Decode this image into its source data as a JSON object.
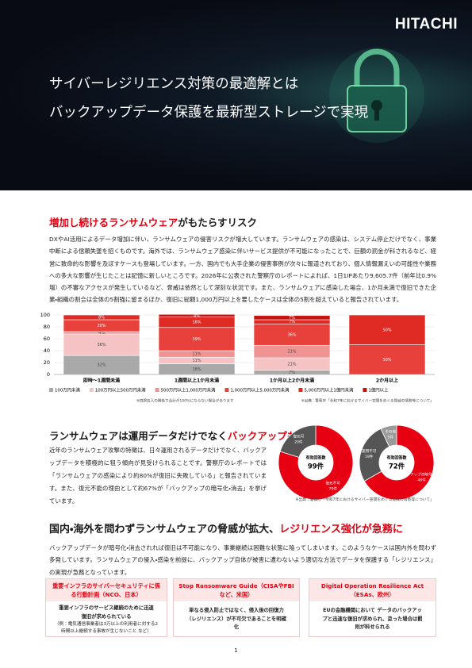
{
  "header": {
    "logo": "HITACHI",
    "title_lines": [
      "サイバーレジリエンス対策の最適解とは",
      "バックアップデータ保護を最新型ストレージで実現"
    ]
  },
  "sections": [
    {
      "heading": [
        {
          "text": "増加し続けるランサムウェア",
          "accent": true
        },
        {
          "text": "がもたらすリスク",
          "accent": false
        }
      ],
      "body": "DXやAI活用によるデータ増加に伴い、ランサムウェアの侵害リスクが増大しています。ランサムウェアの感染は、システム停止だけでなく、事業中断による信頼失墜を招くものです。海外では、ランサムウェア感染に伴いサービス提供が不可能になったことで、巨額の罰金が科されるなど、経営に致命的な影響を及ぼすケースも登場しています。一方、国内でも大手企業の侵害事例が次々に報道されており、個人情報漏えいの可能性や業務への多大な影響が生じたことは記憶に新しいところです。2026年に公表された警察庁のレポートによれば、1日1IPあたり9,605.7件（前年比0.9%増）の不審なアクセスが発生しているなど、脅威は依然として深刻な状況です。また、ランサムウェアに感染した場合、1か月未満で復旧できた企業・組織の割合は全体の5割強に留まるほか、復旧に総額1,000万円以上を要したケースは全体の5割を超えていると報告されています。"
    },
    {
      "heading": [
        {
          "text": "ランサムウェアは運用データだけでなく",
          "accent": false
        },
        {
          "text": "バックアップも標的に",
          "accent": true
        }
      ],
      "body": "近年のランサムウェア攻撃の特徴は、日々運用されるデータだけでなく、バックアップデータを積極的に狙う傾向が見受けられることです。警察庁のレポートでは「ランサムウェアの感染により約80%が復旧に失敗している」と報告されています。また、復元不能の理由として約67%が「バックアップの暗号化・消去」を挙げています。"
    },
    {
      "heading": [
        {
          "text": "国内・海外を問わずランサムウェアの脅威が拡大、",
          "accent": false
        },
        {
          "text": "レジリエンス強化が急務に",
          "accent": true
        }
      ],
      "body": "バックアップデータが暗号化・消去されれば復旧は不可能になり、事業継続は困難な状態に陥ってしまいます。このようなケースは国内外を問わず多発しています。ランサムウェアの侵入・感染を前提に、バックアップ自体が被害に遭わないよう適切な方法でデータを保護する「レジリエンス」の実現が急務となっています。"
    }
  ],
  "chart_data": [
    {
      "type": "bar",
      "stacked": true,
      "grid": true,
      "categories": [
        "即時〜1週間未満",
        "1週間以上1か月未満",
        "1か月以上2か月未満",
        "2か月以上"
      ],
      "ylim": [
        0,
        100
      ],
      "yticks": [
        0,
        20,
        40,
        60,
        80,
        100
      ],
      "series": [
        {
          "name": "100万円未満",
          "color": "#a9a9a9",
          "values": [
            32,
            18,
            7,
            0
          ],
          "value_labels": [
            "32%",
            "18%",
            "7%",
            null
          ]
        },
        {
          "name": "100万円以上500万円未満",
          "color": "#f5c3c3",
          "values": [
            36,
            11,
            21,
            0
          ],
          "value_labels": [
            "36%",
            "11%",
            "21%",
            null
          ]
        },
        {
          "name": "500万円以上1,000万円未満",
          "color": "#f09393",
          "values": [
            4,
            11,
            21,
            0
          ],
          "value_labels": [
            "4%",
            "11%",
            "21%",
            null
          ]
        },
        {
          "name": "1,000万円以上5,000万円未満",
          "color": "#e8413c",
          "values": [
            20,
            39,
            36,
            50
          ],
          "value_labels": [
            "20%",
            "39%",
            "36%",
            "50%"
          ]
        },
        {
          "name": "5,000万円以上1億円未満",
          "color": "#e02a24",
          "values": [
            8,
            18,
            7,
            50
          ],
          "value_labels": [
            "8%",
            "18%",
            "7%",
            "50%"
          ]
        },
        {
          "name": "1億円以上",
          "color": "#c8100d",
          "values": [
            0,
            4,
            7,
            0
          ],
          "value_labels": [
            null,
            "4%",
            "7%",
            null
          ]
        }
      ],
      "note": "※四捨五入の関係で合計が100%にならない場合があります",
      "source": "※出典：警察庁「令和7年におけるサイバー空間をめぐる脅威の情勢等について」"
    },
    {
      "type": "pie",
      "donut": true,
      "center_label": "有効回答数",
      "center_value": "99件",
      "categories": [
        "復元不可",
        "復元可"
      ],
      "values": [
        79,
        20
      ],
      "value_labels": [
        "79件",
        "20件"
      ],
      "colors": [
        "#e60012",
        "#555555"
      ]
    },
    {
      "type": "pie",
      "donut": true,
      "center_label": "有効回答数",
      "center_value": "72件",
      "categories": [
        "バックアップの暗号化・消去",
        "運用不可",
        "その他"
      ],
      "values": [
        48,
        19,
        5
      ],
      "value_labels": [
        "48件",
        "19件",
        "5件"
      ],
      "colors": [
        "#e60012",
        "#555555",
        "#9a9a9a"
      ],
      "source": "※出典：警察庁「令和7年におけるサイバー空間をめぐる脅威の情勢等について」"
    }
  ],
  "cards": [
    {
      "title": "重要インフラのサイバーセキュリティに係る行動計画（NCO、日本）",
      "body": "重要インフラのサービス継続のために迅速復旧が求められている",
      "note": "（例：電気通信事業者は3万以上の利用者に対する2時間以上継続する事故が生じないこと など）"
    },
    {
      "title": "Stop Ransomware Guide（CISAやFBIなど、米国）",
      "body": "単なる侵入防止ではなく、侵入後の回復力（レジリエンス）が不可欠であることを明確化"
    },
    {
      "title": "Digital Operation Resilience Act（ESAs、欧州）",
      "body": "EUの金融機関において データのバックアップと迅速な復旧が求められ、怠った場合は罰則が科せられる"
    }
  ],
  "page_number": "1"
}
